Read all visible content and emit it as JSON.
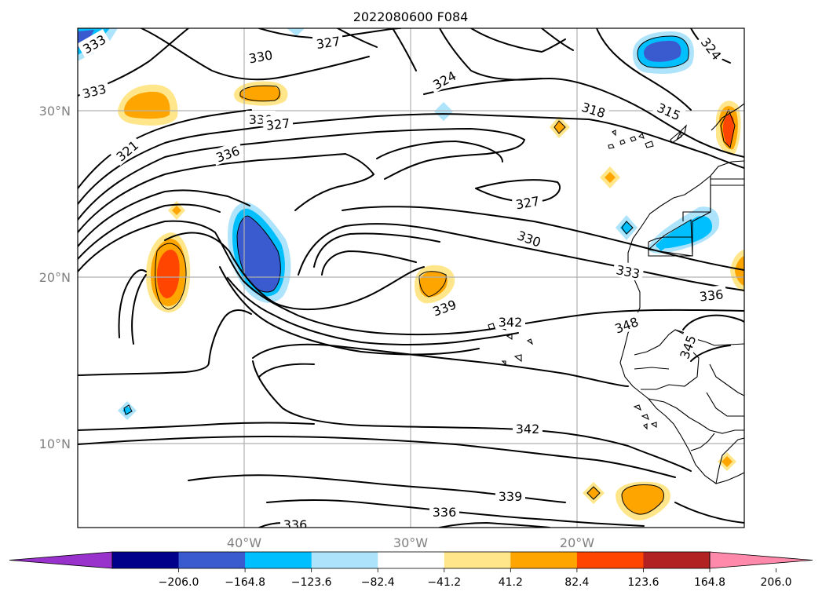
{
  "map": {
    "title": "2022080600 F084",
    "lat_labels": [
      {
        "text": "30°N",
        "lat": 30
      },
      {
        "text": "20°N",
        "lat": 20
      },
      {
        "text": "10°N",
        "lat": 10
      }
    ],
    "lon_labels": [
      {
        "text": "40°W",
        "lon": -40
      },
      {
        "text": "30°W",
        "lon": -30
      },
      {
        "text": "20°W",
        "lon": -20
      }
    ],
    "extent": {
      "lon_min": -50,
      "lon_max": -10,
      "lat_min": 5,
      "lat_max": 35
    },
    "gridlines": true,
    "contour_labels": [
      "333",
      "327",
      "330",
      "333",
      "330",
      "327",
      "324",
      "336",
      "321",
      "318",
      "315",
      "324",
      "327",
      "330",
      "333",
      "336",
      "339",
      "342",
      "348",
      "345",
      "342",
      "339",
      "336",
      "336"
    ]
  },
  "colorbar": {
    "orientation": "horizontal",
    "extend": "both",
    "levels": [
      -247.2,
      -206.0,
      -164.8,
      -123.6,
      -82.4,
      -41.2,
      41.2,
      82.4,
      123.6,
      164.8,
      206.0,
      247.2
    ],
    "tick_labels": [
      "−206.0",
      "−164.8",
      "−123.6",
      "−82.4",
      "−41.2",
      "41.2",
      "82.4",
      "123.6",
      "164.8",
      "206.0"
    ],
    "colors": [
      "#9932cc",
      "#00008b",
      "#3a5bd0",
      "#00bfff",
      "#aee4fb",
      "#ffffff",
      "#ffe68a",
      "#ffa500",
      "#ff4500",
      "#b22222",
      "#ff89aa"
    ]
  }
}
